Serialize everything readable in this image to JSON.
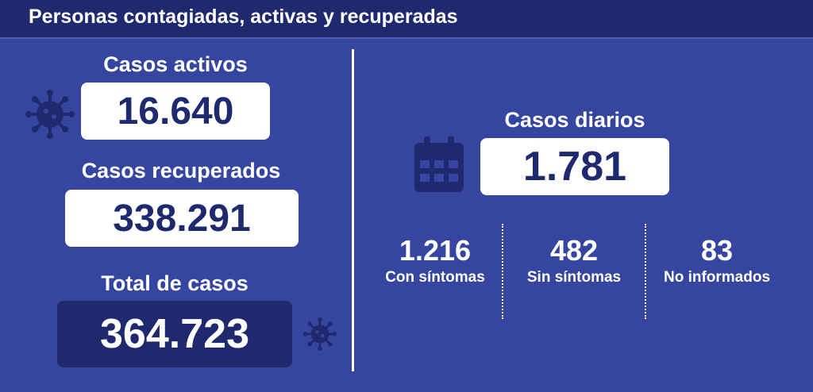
{
  "header": {
    "title": "Personas contagiadas, activas y recuperadas"
  },
  "activos": {
    "label": "Casos activos",
    "value": "16.640",
    "icon": "virus-icon"
  },
  "recuperados": {
    "label": "Casos recuperados",
    "value": "338.291"
  },
  "total": {
    "label": "Total de casos",
    "value": "364.723",
    "icon": "virus-icon"
  },
  "diarios": {
    "label": "Casos diarios",
    "value": "1.781",
    "icon": "calendar-icon",
    "breakdown": [
      {
        "value": "1.216",
        "label": "Con síntomas"
      },
      {
        "value": "482",
        "label": "Sin síntomas"
      },
      {
        "value": "83",
        "label": "No informados"
      }
    ]
  },
  "colors": {
    "background": "#3646a0",
    "header": "#1f2a6e",
    "icon": "#1f2a6e",
    "box": "#ffffff"
  }
}
